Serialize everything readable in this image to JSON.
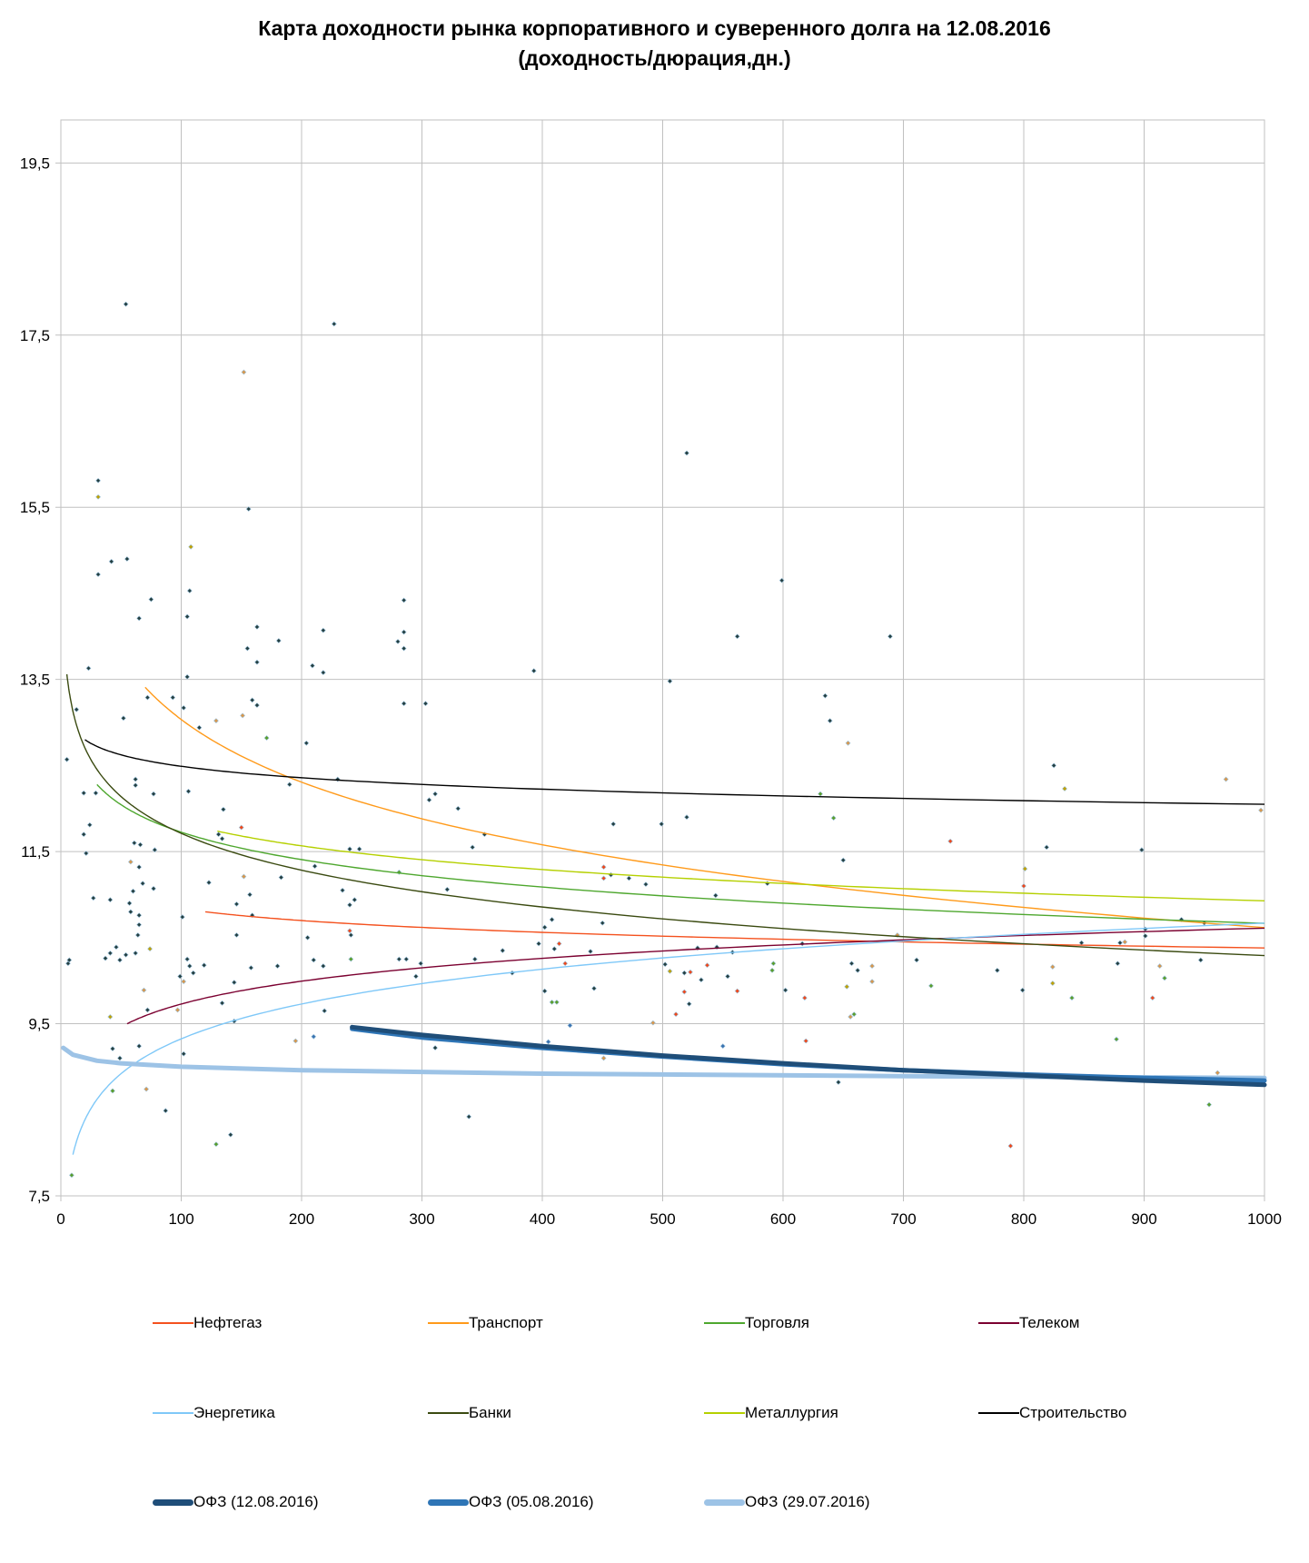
{
  "chart_data": {
    "type": "scatter",
    "title": "Карта доходности рынка корпоративного и суверенного долга на 12.08.2016",
    "subtitle": "(доходность/дюрация,дн.)",
    "xlabel": "",
    "ylabel": "",
    "xlim": [
      0,
      1000
    ],
    "ylim": [
      7.5,
      20
    ],
    "x_ticks": [
      "0",
      "100",
      "200",
      "300",
      "400",
      "500",
      "600",
      "700",
      "800",
      "900",
      "1000"
    ],
    "x_tick_values": [
      0,
      100,
      200,
      300,
      400,
      500,
      600,
      700,
      800,
      900,
      1000
    ],
    "y_ticks": [
      "7,5",
      "9,5",
      "11,5",
      "13,5",
      "15,5",
      "17,5",
      "19,5"
    ],
    "y_tick_values": [
      7.5,
      9.5,
      11.5,
      13.5,
      15.5,
      17.5,
      19.5
    ],
    "grid": true,
    "legend_position": "bottom",
    "point_colors": {
      "d": "#243f40",
      "t": "#d8974c",
      "g": "#5a9e2a",
      "r": "#f0481a",
      "y": "#c0a000",
      "b": "#3a72b0"
    },
    "trendlines": [
      {
        "name": "Нефтегаз",
        "color": "#f4511e",
        "fit": "log",
        "a": 11.748,
        "b": -0.198,
        "x_range": [
          120,
          1000
        ]
      },
      {
        "name": "Транспорт",
        "color": "#ff9a1a",
        "fit": "log",
        "a": 17.87,
        "b": -1.05,
        "x_range": [
          70,
          1000
        ]
      },
      {
        "name": "Торговля",
        "color": "#4ea72e",
        "fit": "log",
        "a": 13.844,
        "b": -0.46,
        "x_range": [
          30,
          1000
        ]
      },
      {
        "name": "Телеком",
        "color": "#7b0030",
        "fit": "log",
        "a": 7.965,
        "b": 0.383,
        "x_range": [
          55,
          1000
        ]
      },
      {
        "name": "Энергетика",
        "color": "#7fc8f8",
        "fit": "log",
        "a": 6.635,
        "b": 0.584,
        "x_range": [
          10,
          1000
        ]
      },
      {
        "name": "Банки",
        "color": "#3a4a10",
        "fit": "log",
        "a": 14.553,
        "b": -0.617,
        "x_range": [
          5,
          1000
        ]
      },
      {
        "name": "Металлургия",
        "color": "#b5d000",
        "fit": "log",
        "a": 13.67,
        "b": -0.397,
        "x_range": [
          130,
          1000
        ]
      },
      {
        "name": "Строительство",
        "color": "#000000",
        "fit": "log",
        "a": 13.375,
        "b": -0.192,
        "x_range": [
          20,
          1000
        ]
      }
    ],
    "curves": [
      {
        "name": "ОФЗ (12.08.2016)",
        "color": "#1f4e79",
        "points": [
          [
            242,
            9.46
          ],
          [
            300,
            9.37
          ],
          [
            400,
            9.24
          ],
          [
            500,
            9.13
          ],
          [
            600,
            9.04
          ],
          [
            700,
            8.96
          ],
          [
            800,
            8.9
          ],
          [
            900,
            8.84
          ],
          [
            1000,
            8.79
          ]
        ]
      },
      {
        "name": "ОФЗ (05.08.2016)",
        "color": "#2e75b6",
        "points": [
          [
            242,
            9.44
          ],
          [
            300,
            9.34
          ],
          [
            400,
            9.22
          ],
          [
            500,
            9.12
          ],
          [
            600,
            9.03
          ],
          [
            700,
            8.96
          ],
          [
            800,
            8.91
          ],
          [
            900,
            8.87
          ],
          [
            1000,
            8.84
          ]
        ]
      },
      {
        "name": "ОФЗ (29.07.2016)",
        "color": "#9dc3e6",
        "points": [
          [
            2,
            9.22
          ],
          [
            10,
            9.14
          ],
          [
            30,
            9.07
          ],
          [
            50,
            9.04
          ],
          [
            100,
            9.0
          ],
          [
            200,
            8.96
          ],
          [
            300,
            8.94
          ],
          [
            400,
            8.92
          ],
          [
            500,
            8.91
          ],
          [
            700,
            8.89
          ],
          [
            1000,
            8.87
          ]
        ]
      }
    ],
    "points": [
      [
        54,
        17.86,
        "d"
      ],
      [
        227,
        17.63,
        "d"
      ],
      [
        152,
        17.07,
        "t"
      ],
      [
        31,
        15.81,
        "d"
      ],
      [
        31,
        15.62,
        "y"
      ],
      [
        520,
        16.13,
        "d"
      ],
      [
        156,
        15.48,
        "d"
      ],
      [
        108,
        15.04,
        "y"
      ],
      [
        55,
        14.9,
        "d"
      ],
      [
        42,
        14.87,
        "d"
      ],
      [
        31,
        14.72,
        "d"
      ],
      [
        599,
        14.65,
        "d"
      ],
      [
        75,
        14.43,
        "d"
      ],
      [
        285,
        14.42,
        "d"
      ],
      [
        107,
        14.53,
        "d"
      ],
      [
        105,
        14.23,
        "d"
      ],
      [
        65,
        14.21,
        "d"
      ],
      [
        163,
        14.11,
        "d"
      ],
      [
        218,
        14.07,
        "d"
      ],
      [
        285,
        14.05,
        "d"
      ],
      [
        181,
        13.95,
        "d"
      ],
      [
        280,
        13.94,
        "d"
      ],
      [
        155,
        13.86,
        "d"
      ],
      [
        285,
        13.86,
        "d"
      ],
      [
        562,
        14.0,
        "d"
      ],
      [
        689,
        14.0,
        "d"
      ],
      [
        163,
        13.7,
        "d"
      ],
      [
        209,
        13.66,
        "d"
      ],
      [
        218,
        13.58,
        "d"
      ],
      [
        23,
        13.63,
        "d"
      ],
      [
        393,
        13.6,
        "d"
      ],
      [
        105,
        13.53,
        "d"
      ],
      [
        506,
        13.48,
        "d"
      ],
      [
        93,
        13.29,
        "d"
      ],
      [
        72,
        13.29,
        "d"
      ],
      [
        159,
        13.26,
        "d"
      ],
      [
        163,
        13.2,
        "d"
      ],
      [
        285,
        13.22,
        "d"
      ],
      [
        303,
        13.22,
        "d"
      ],
      [
        102,
        13.17,
        "d"
      ],
      [
        13,
        13.15,
        "d"
      ],
      [
        151,
        13.08,
        "t"
      ],
      [
        129,
        13.02,
        "t"
      ],
      [
        52,
        13.05,
        "d"
      ],
      [
        115,
        12.94,
        "d"
      ],
      [
        635,
        13.31,
        "d"
      ],
      [
        639,
        13.02,
        "d"
      ],
      [
        171,
        12.82,
        "g"
      ],
      [
        204,
        12.76,
        "d"
      ],
      [
        654,
        12.76,
        "t"
      ],
      [
        5,
        12.57,
        "d"
      ],
      [
        825,
        12.5,
        "d"
      ],
      [
        968,
        12.34,
        "t"
      ],
      [
        834,
        12.23,
        "y"
      ],
      [
        62,
        12.34,
        "d"
      ],
      [
        230,
        12.34,
        "d"
      ],
      [
        62,
        12.27,
        "d"
      ],
      [
        19,
        12.18,
        "d"
      ],
      [
        29,
        12.18,
        "d"
      ],
      [
        77,
        12.17,
        "d"
      ],
      [
        106,
        12.2,
        "d"
      ],
      [
        190,
        12.28,
        "d"
      ],
      [
        631,
        12.17,
        "g"
      ],
      [
        311,
        12.17,
        "d"
      ],
      [
        306,
        12.1,
        "d"
      ],
      [
        330,
        12.0,
        "d"
      ],
      [
        135,
        11.99,
        "d"
      ],
      [
        642,
        11.89,
        "g"
      ],
      [
        520,
        11.9,
        "d"
      ],
      [
        459,
        11.82,
        "d"
      ],
      [
        499,
        11.82,
        "d"
      ],
      [
        24,
        11.81,
        "d"
      ],
      [
        997,
        11.98,
        "t"
      ],
      [
        19,
        11.7,
        "d"
      ],
      [
        739,
        11.62,
        "r"
      ],
      [
        150,
        11.78,
        "r"
      ],
      [
        352,
        11.7,
        "d"
      ],
      [
        131,
        11.7,
        "d"
      ],
      [
        134,
        11.65,
        "d"
      ],
      [
        61,
        11.6,
        "d"
      ],
      [
        66,
        11.58,
        "d"
      ],
      [
        78,
        11.52,
        "d"
      ],
      [
        240,
        11.53,
        "d"
      ],
      [
        248,
        11.53,
        "d"
      ],
      [
        342,
        11.55,
        "d"
      ],
      [
        819,
        11.55,
        "d"
      ],
      [
        898,
        11.52,
        "d"
      ],
      [
        21,
        11.48,
        "d"
      ],
      [
        650,
        11.4,
        "d"
      ],
      [
        58,
        11.38,
        "t"
      ],
      [
        65,
        11.32,
        "d"
      ],
      [
        801,
        11.3,
        "y"
      ],
      [
        451,
        11.32,
        "r"
      ],
      [
        451,
        11.19,
        "r"
      ],
      [
        457,
        11.23,
        "d"
      ],
      [
        472,
        11.19,
        "d"
      ],
      [
        211,
        11.33,
        "d"
      ],
      [
        281,
        11.26,
        "g"
      ],
      [
        152,
        11.21,
        "t"
      ],
      [
        123,
        11.14,
        "d"
      ],
      [
        183,
        11.2,
        "d"
      ],
      [
        68,
        11.13,
        "d"
      ],
      [
        800,
        11.1,
        "r"
      ],
      [
        486,
        11.12,
        "d"
      ],
      [
        587,
        11.13,
        "d"
      ],
      [
        60,
        11.04,
        "d"
      ],
      [
        77,
        11.07,
        "d"
      ],
      [
        234,
        11.05,
        "d"
      ],
      [
        321,
        11.06,
        "d"
      ],
      [
        157,
        11.0,
        "d"
      ],
      [
        27,
        10.96,
        "d"
      ],
      [
        41,
        10.94,
        "d"
      ],
      [
        57,
        10.9,
        "d"
      ],
      [
        244,
        10.94,
        "d"
      ],
      [
        240,
        10.88,
        "d"
      ],
      [
        544,
        10.99,
        "d"
      ],
      [
        146,
        10.89,
        "d"
      ],
      [
        58,
        10.8,
        "d"
      ],
      [
        65,
        10.76,
        "d"
      ],
      [
        101,
        10.74,
        "d"
      ],
      [
        159,
        10.76,
        "d"
      ],
      [
        931,
        10.71,
        "d"
      ],
      [
        950,
        10.67,
        "d"
      ],
      [
        450,
        10.67,
        "d"
      ],
      [
        65,
        10.65,
        "d"
      ],
      [
        408,
        10.71,
        "d"
      ],
      [
        402,
        10.62,
        "d"
      ],
      [
        240,
        10.58,
        "r"
      ],
      [
        241,
        10.53,
        "d"
      ],
      [
        146,
        10.53,
        "d"
      ],
      [
        64,
        10.53,
        "d"
      ],
      [
        205,
        10.5,
        "d"
      ],
      [
        901,
        10.52,
        "d"
      ],
      [
        901,
        10.6,
        "d"
      ],
      [
        695,
        10.53,
        "t"
      ],
      [
        397,
        10.43,
        "d"
      ],
      [
        414,
        10.43,
        "r"
      ],
      [
        410,
        10.37,
        "d"
      ],
      [
        46,
        10.39,
        "d"
      ],
      [
        74,
        10.37,
        "y"
      ],
      [
        41,
        10.32,
        "d"
      ],
      [
        367,
        10.35,
        "d"
      ],
      [
        440,
        10.34,
        "d"
      ],
      [
        529,
        10.38,
        "d"
      ],
      [
        545,
        10.39,
        "d"
      ],
      [
        558,
        10.33,
        "d"
      ],
      [
        884,
        10.45,
        "t"
      ],
      [
        848,
        10.44,
        "d"
      ],
      [
        880,
        10.44,
        "d"
      ],
      [
        616,
        10.43,
        "d"
      ],
      [
        62,
        10.32,
        "d"
      ],
      [
        37,
        10.26,
        "d"
      ],
      [
        49,
        10.24,
        "d"
      ],
      [
        7,
        10.24,
        "d"
      ],
      [
        6,
        10.2,
        "d"
      ],
      [
        54,
        10.3,
        "d"
      ],
      [
        105,
        10.25,
        "d"
      ],
      [
        241,
        10.25,
        "g"
      ],
      [
        210,
        10.24,
        "d"
      ],
      [
        281,
        10.25,
        "d"
      ],
      [
        287,
        10.25,
        "d"
      ],
      [
        344,
        10.25,
        "d"
      ],
      [
        299,
        10.2,
        "d"
      ],
      [
        419,
        10.2,
        "r"
      ],
      [
        502,
        10.19,
        "d"
      ],
      [
        537,
        10.18,
        "r"
      ],
      [
        711,
        10.24,
        "d"
      ],
      [
        947,
        10.24,
        "d"
      ],
      [
        878,
        10.2,
        "d"
      ],
      [
        657,
        10.2,
        "d"
      ],
      [
        674,
        10.17,
        "t"
      ],
      [
        824,
        10.16,
        "t"
      ],
      [
        913,
        10.17,
        "t"
      ],
      [
        592,
        10.2,
        "g"
      ],
      [
        591,
        10.12,
        "g"
      ],
      [
        662,
        10.12,
        "d"
      ],
      [
        778,
        10.12,
        "d"
      ],
      [
        107,
        10.17,
        "d"
      ],
      [
        119,
        10.18,
        "d"
      ],
      [
        218,
        10.17,
        "d"
      ],
      [
        110,
        10.09,
        "d"
      ],
      [
        158,
        10.15,
        "d"
      ],
      [
        180,
        10.17,
        "d"
      ],
      [
        506,
        10.11,
        "y"
      ],
      [
        554,
        10.05,
        "d"
      ],
      [
        518,
        10.09,
        "d"
      ],
      [
        523,
        10.1,
        "r"
      ],
      [
        375,
        10.09,
        "d"
      ],
      [
        99,
        10.05,
        "d"
      ],
      [
        102,
        9.99,
        "t"
      ],
      [
        917,
        10.03,
        "g"
      ],
      [
        295,
        10.05,
        "d"
      ],
      [
        532,
        10.01,
        "d"
      ],
      [
        674,
        9.99,
        "t"
      ],
      [
        824,
        9.97,
        "y"
      ],
      [
        723,
        9.94,
        "g"
      ],
      [
        653,
        9.93,
        "y"
      ],
      [
        799,
        9.89,
        "d"
      ],
      [
        402,
        9.88,
        "d"
      ],
      [
        443,
        9.91,
        "d"
      ],
      [
        562,
        9.88,
        "r"
      ],
      [
        602,
        9.89,
        "d"
      ],
      [
        69,
        9.89,
        "t"
      ],
      [
        518,
        9.87,
        "r"
      ],
      [
        144,
        9.98,
        "d"
      ],
      [
        618,
        9.8,
        "r"
      ],
      [
        840,
        9.8,
        "g"
      ],
      [
        907,
        9.8,
        "r"
      ],
      [
        408,
        9.75,
        "g"
      ],
      [
        412,
        9.75,
        "g"
      ],
      [
        522,
        9.73,
        "d"
      ],
      [
        134,
        9.74,
        "d"
      ],
      [
        72,
        9.66,
        "d"
      ],
      [
        97,
        9.66,
        "t"
      ],
      [
        511,
        9.61,
        "r"
      ],
      [
        219,
        9.65,
        "d"
      ],
      [
        41,
        9.58,
        "y"
      ],
      [
        656,
        9.58,
        "t"
      ],
      [
        659,
        9.61,
        "g"
      ],
      [
        144,
        9.53,
        "d"
      ],
      [
        492,
        9.51,
        "t"
      ],
      [
        423,
        9.48,
        "b"
      ],
      [
        210,
        9.35,
        "b"
      ],
      [
        405,
        9.29,
        "b"
      ],
      [
        619,
        9.3,
        "r"
      ],
      [
        877,
        9.32,
        "g"
      ],
      [
        195,
        9.3,
        "t"
      ],
      [
        65,
        9.24,
        "d"
      ],
      [
        43,
        9.21,
        "d"
      ],
      [
        102,
        9.15,
        "d"
      ],
      [
        451,
        9.1,
        "t"
      ],
      [
        550,
        9.24,
        "b"
      ],
      [
        311,
        9.22,
        "d"
      ],
      [
        49,
        9.1,
        "d"
      ],
      [
        961,
        8.93,
        "t"
      ],
      [
        646,
        8.82,
        "d"
      ],
      [
        43,
        8.72,
        "g"
      ],
      [
        71,
        8.74,
        "t"
      ],
      [
        87,
        8.49,
        "d"
      ],
      [
        339,
        8.42,
        "d"
      ],
      [
        954,
        8.56,
        "g"
      ],
      [
        141,
        8.21,
        "d"
      ],
      [
        129,
        8.1,
        "g"
      ],
      [
        789,
        8.08,
        "r"
      ],
      [
        9,
        7.74,
        "g"
      ]
    ]
  },
  "legend": {
    "items": [
      {
        "label": "Нефтегаз",
        "color": "#f4511e",
        "thick": false
      },
      {
        "label": "Транспорт",
        "color": "#ff9a1a",
        "thick": false
      },
      {
        "label": "Торговля",
        "color": "#4ea72e",
        "thick": false
      },
      {
        "label": "Телеком",
        "color": "#7b0030",
        "thick": false
      },
      {
        "label": "Энергетика",
        "color": "#7fc8f8",
        "thick": false
      },
      {
        "label": "Банки",
        "color": "#3a4a10",
        "thick": false
      },
      {
        "label": "Металлургия",
        "color": "#b5d000",
        "thick": false
      },
      {
        "label": "Строительство",
        "color": "#000000",
        "thick": false
      },
      {
        "label": "ОФЗ (12.08.2016)",
        "color": "#1f4e79",
        "thick": true
      },
      {
        "label": "ОФЗ (05.08.2016)",
        "color": "#2e75b6",
        "thick": true
      },
      {
        "label": "ОФЗ (29.07.2016)",
        "color": "#9dc3e6",
        "thick": true
      }
    ]
  }
}
